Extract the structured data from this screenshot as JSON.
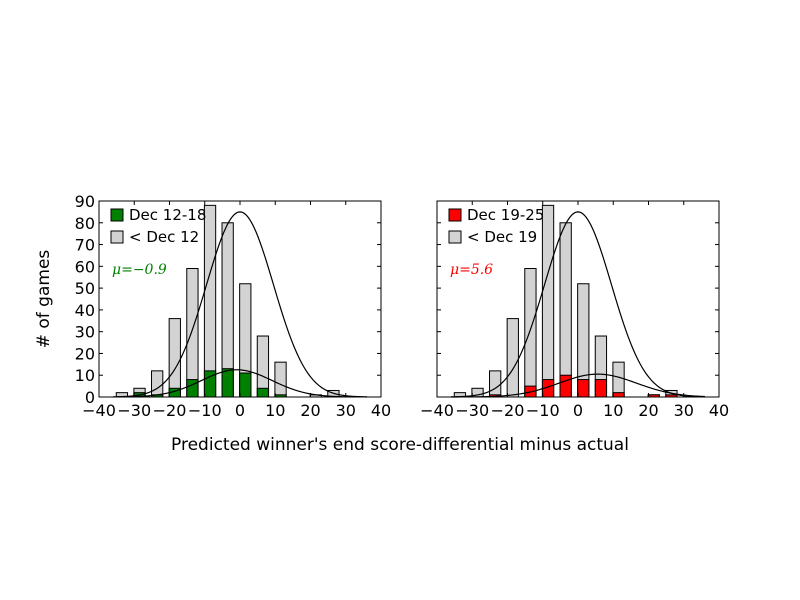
{
  "chart_data": [
    {
      "type": "bar",
      "x": [
        -33.5,
        -28.5,
        -23.5,
        -18.5,
        -13.5,
        -8.5,
        -3.5,
        1.5,
        6.5,
        11.5,
        16.5,
        21.5,
        26.5,
        31.5
      ],
      "series": [
        {
          "name": "< Dec 12",
          "values": [
            2,
            4,
            12,
            36,
            59,
            88,
            80,
            52,
            28,
            16,
            0,
            1,
            3,
            0
          ],
          "color": "#d3d3d3"
        },
        {
          "name": "Dec 12-18",
          "values": [
            0,
            2,
            1,
            4,
            8,
            12,
            13,
            11,
            4,
            1,
            0,
            0,
            0,
            0
          ],
          "color": "#008000"
        }
      ],
      "fits": [
        {
          "for": "< Dec 12",
          "peak": 85,
          "mean": 0,
          "sd": 9.5
        },
        {
          "for": "Dec 12-18",
          "peak": 12.5,
          "mean": -0.9,
          "sd": 10
        }
      ],
      "annotation": {
        "text": "μ=−0.9",
        "color": "#008000"
      },
      "xlim": [
        -40,
        40
      ],
      "ylim": [
        0,
        90
      ],
      "xticks": [
        -40,
        -30,
        -20,
        -10,
        0,
        10,
        20,
        30,
        40
      ],
      "yticks": [
        0,
        10,
        20,
        30,
        40,
        50,
        60,
        70,
        80,
        90
      ],
      "legend_position": "top-left"
    },
    {
      "type": "bar",
      "x": [
        -33.5,
        -28.5,
        -23.5,
        -18.5,
        -13.5,
        -8.5,
        -3.5,
        1.5,
        6.5,
        11.5,
        16.5,
        21.5,
        26.5,
        31.5
      ],
      "series": [
        {
          "name": "< Dec 19",
          "values": [
            2,
            4,
            12,
            36,
            59,
            88,
            80,
            52,
            28,
            16,
            0,
            1,
            3,
            0
          ],
          "color": "#d3d3d3"
        },
        {
          "name": "Dec 19-25",
          "values": [
            0,
            0,
            1,
            0,
            5,
            8,
            10,
            8,
            8,
            2,
            0,
            1,
            1,
            0
          ],
          "color": "#ff0000"
        }
      ],
      "fits": [
        {
          "for": "< Dec 19",
          "peak": 85,
          "mean": 0,
          "sd": 9.5
        },
        {
          "for": "Dec 19-25",
          "peak": 10.5,
          "mean": 5.6,
          "sd": 11
        }
      ],
      "annotation": {
        "text": "μ=5.6",
        "color": "#ff0000"
      },
      "xlim": [
        -40,
        40
      ],
      "ylim": [
        0,
        90
      ],
      "xticks": [
        -40,
        -30,
        -20,
        -10,
        0,
        10,
        20,
        30,
        40
      ],
      "yticks": [],
      "legend_position": "top-left"
    }
  ],
  "shared_xlabel": "Predicted winner's end score-differential minus actual",
  "shared_ylabel": "# of games"
}
